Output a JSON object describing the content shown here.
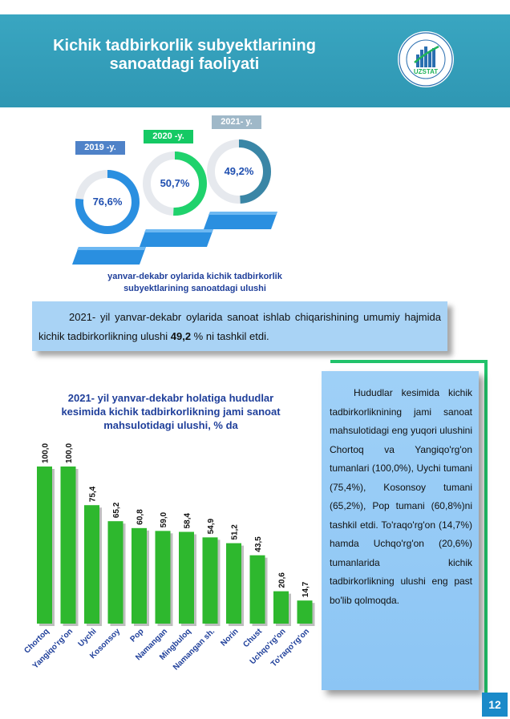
{
  "header": {
    "title_line1": "Kichik tadbirkorlik subyektlarining",
    "title_line2": "sanoatdagi faoliyati",
    "logo_text": "UZSTAT",
    "logo_ring_top": "O'ZBEKISTON RESPUBLIKASI",
    "logo_ring_bottom": "STATISTIKA AGENTLIGI"
  },
  "donuts": [
    {
      "label": "2019 -y.",
      "value": "76,6%",
      "share": 76.6,
      "color": "#2a8fe0",
      "label_bg": "#4f82c8"
    },
    {
      "label": "2020 -y.",
      "value": "50,7%",
      "share": 50.7,
      "color": "#1fd26c",
      "label_bg": "#15c964"
    },
    {
      "label": "2021- y.",
      "value": "49,2%",
      "share": 49.2,
      "color": "#3a86a6",
      "label_bg": "#9fb8c8"
    }
  ],
  "donut_caption": {
    "line1": "yanvar-dekabr oylarida kichik tadbirkorlik",
    "line2": "subyektlarining sanoatdagi ulushi"
  },
  "summary": {
    "text_before": "2021- yil yanvar-dekabr oylarida sanoat ishlab chiqarishining umumiy hajmida kichik tadbirkorlikning ulushi ",
    "value_bold": "49,2",
    "text_after": " % ni tashkil etdi."
  },
  "chart_data": {
    "type": "bar",
    "title": "2021- yil yanvar-dekabr holatiga hududlar kesimida kichik tadbirkorlikning jami sanoat mahsulotidagi ulushi, % da",
    "title_line1": "2021- yil yanvar-dekabr holatiga hududlar",
    "title_line2": "kesimida kichik tadbirkorlikning jami sanoat",
    "title_line3": "mahsulotidagi ulushi, % da",
    "categories": [
      "Chortoq",
      "Yangiqo'rg'on",
      "Uychi",
      "Kosonsoy",
      "Pop",
      "Namangan",
      "Mingbuloq",
      "Namangan sh.",
      "Norin",
      "Chust",
      "Uchqo'rg'on",
      "To'raqo'rg'on"
    ],
    "values": [
      100.0,
      100.0,
      75.4,
      65.2,
      60.8,
      59.0,
      58.4,
      54.9,
      51.2,
      43.5,
      20.6,
      14.7
    ],
    "value_labels": [
      "100,0",
      "100,0",
      "75,4",
      "65,2",
      "60,8",
      "59,0",
      "58,4",
      "54,9",
      "51,2",
      "43,5",
      "20,6",
      "14,7"
    ],
    "ylim": [
      0,
      100
    ],
    "bar_color": "#2eb82e",
    "grid": false,
    "legend": false
  },
  "side_text": "Hududlar kesimida kichik tadbirkorliknining jami sanoat mahsulotidagi eng yuqori ulushini Chortoq va Yangiqo'rg'on tumanlari (100,0%), Uychi tumani (75,4%), Kosonsoy tumani (65,2%), Pop tumani (60,8%)ni tashkil etdi. To'raqo'rg'on (14,7%) hamda Uchqo'rg'on (20,6%) tumanlarida kichik tadbirkorlikning ulushi eng past bo'lib qolmoqda.",
  "page_number": "12"
}
